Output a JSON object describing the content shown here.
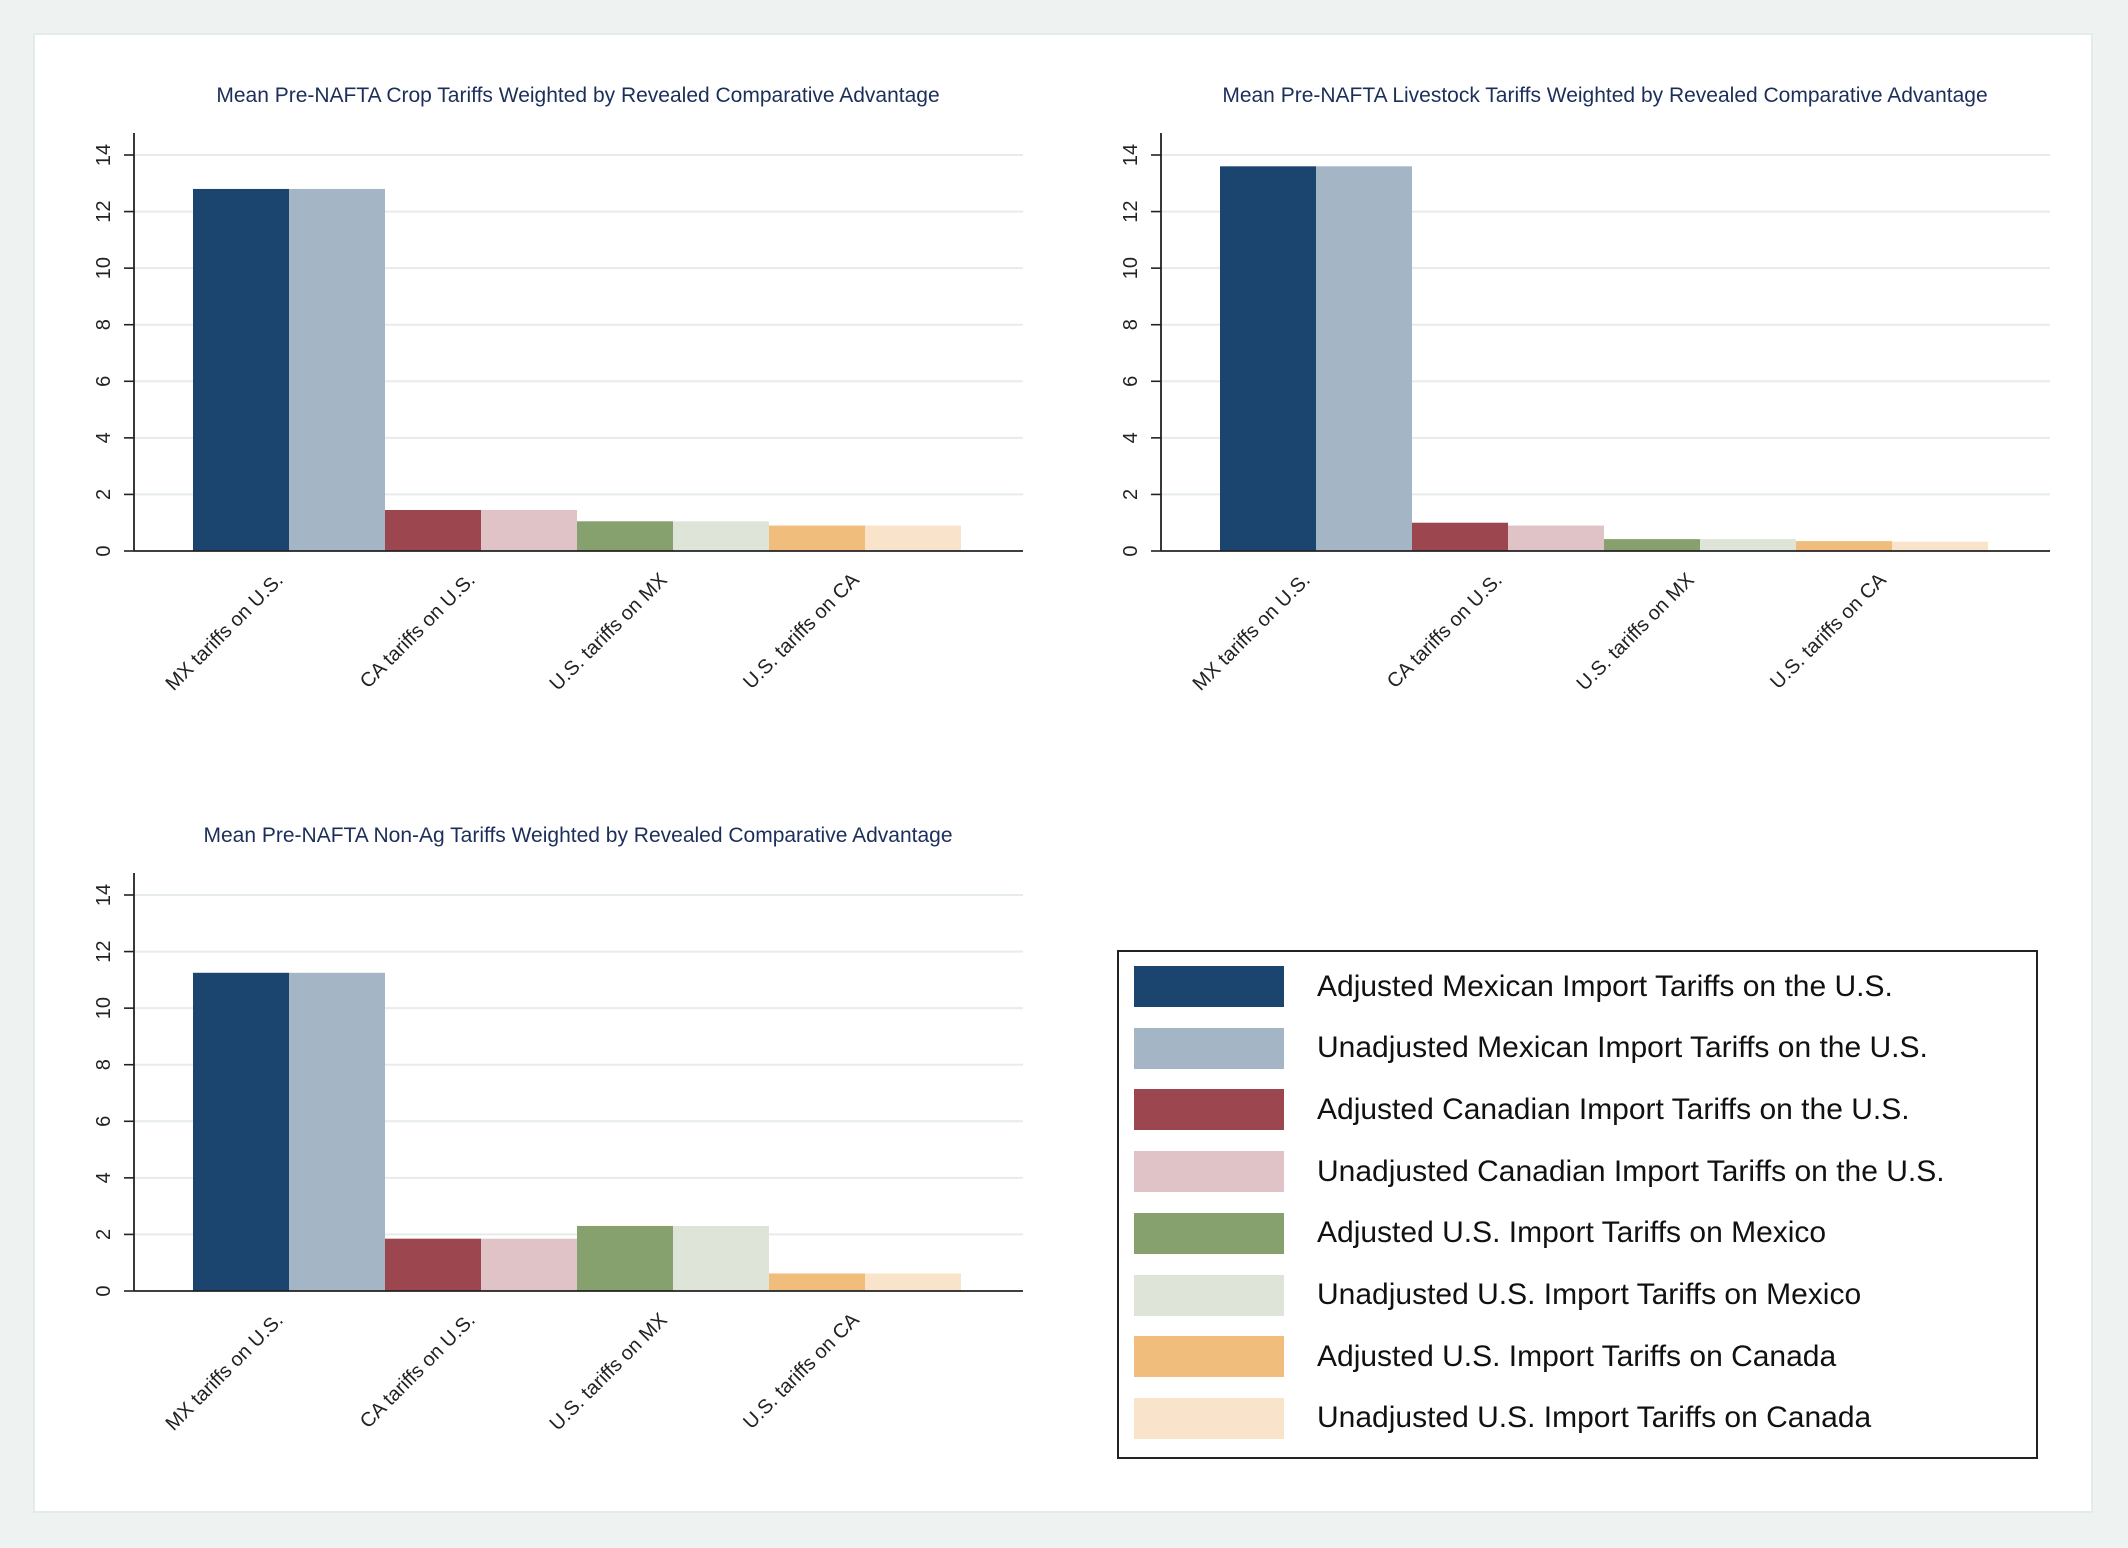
{
  "chart_data": [
    {
      "type": "bar",
      "title": "Mean Pre-NAFTA Crop Tariffs Weighted by Revealed Comparative Advantage",
      "categories": [
        "MX tariffs on U.S.",
        "CA tariffs on U.S.",
        "U.S. tariffs on MX",
        "U.S. tariffs on CA"
      ],
      "series": [
        {
          "name": "Adjusted",
          "values": [
            12.8,
            1.45,
            1.05,
            0.9
          ]
        },
        {
          "name": "Unadjusted",
          "values": [
            12.8,
            1.45,
            1.05,
            0.9
          ]
        }
      ],
      "ylim": [
        0,
        14
      ],
      "yticks": [
        "0",
        "2",
        "4",
        "6",
        "8",
        "10",
        "12",
        "14"
      ],
      "grid": true
    },
    {
      "type": "bar",
      "title": "Mean Pre-NAFTA Livestock Tariffs Weighted by Revealed Comparative Advantage",
      "categories": [
        "MX tariffs on U.S.",
        "CA tariffs on U.S.",
        "U.S. tariffs on MX",
        "U.S. tariffs on CA"
      ],
      "series": [
        {
          "name": "Adjusted",
          "values": [
            13.6,
            1.0,
            0.42,
            0.35
          ]
        },
        {
          "name": "Unadjusted",
          "values": [
            13.6,
            0.9,
            0.42,
            0.33
          ]
        }
      ],
      "ylim": [
        0,
        14
      ],
      "yticks": [
        "0",
        "2",
        "4",
        "6",
        "8",
        "10",
        "12",
        "14"
      ],
      "grid": true
    },
    {
      "type": "bar",
      "title": "Mean Pre-NAFTA Non-Ag Tariffs Weighted by Revealed Comparative Advantage",
      "categories": [
        "MX tariffs on U.S.",
        "CA tariffs on U.S.",
        "U.S. tariffs on MX",
        "U.S. tariffs on CA"
      ],
      "series": [
        {
          "name": "Adjusted",
          "values": [
            11.25,
            1.85,
            2.3,
            0.62
          ]
        },
        {
          "name": "Unadjusted",
          "values": [
            11.25,
            1.85,
            2.3,
            0.62
          ]
        }
      ],
      "ylim": [
        0,
        14
      ],
      "yticks": [
        "0",
        "2",
        "4",
        "6",
        "8",
        "10",
        "12",
        "14"
      ],
      "grid": true
    }
  ],
  "colors": {
    "mx_adjusted": "#1b456e",
    "mx_unadjusted": "#a4b5c6",
    "ca_adjusted": "#9c4650",
    "ca_unadjusted": "#e0c3c6",
    "us_mx_adjusted": "#86a06e",
    "us_mx_unadjusted": "#dfe4d8",
    "us_ca_adjusted": "#f1bd7d",
    "us_ca_unadjusted": "#f9e4cb",
    "title": "#1c2e5a",
    "grid": "#e5ecea"
  },
  "legend": {
    "placement": "bottom-right",
    "items": [
      {
        "label": "Adjusted Mexican Import Tariffs on the U.S.",
        "color": "#1b456e"
      },
      {
        "label": "Unadjusted Mexican Import Tariffs on the U.S.",
        "color": "#a4b5c6"
      },
      {
        "label": "Adjusted Canadian Import Tariffs on the U.S.",
        "color": "#9c4650"
      },
      {
        "label": "Unadjusted Canadian Import Tariffs on the U.S.",
        "color": "#e0c3c6"
      },
      {
        "label": " Adjusted U.S. Import Tariffs on Mexico",
        "color": "#86a06e"
      },
      {
        "label": "Unadjusted U.S. Import Tariffs on Mexico",
        "color": "#dfe4d8"
      },
      {
        "label": "Adjusted U.S. Import Tariffs on Canada",
        "color": "#f1bd7d"
      },
      {
        "label": "Unadjusted U.S. Import Tariffs on Canada",
        "color": "#f9e4cb"
      }
    ]
  }
}
